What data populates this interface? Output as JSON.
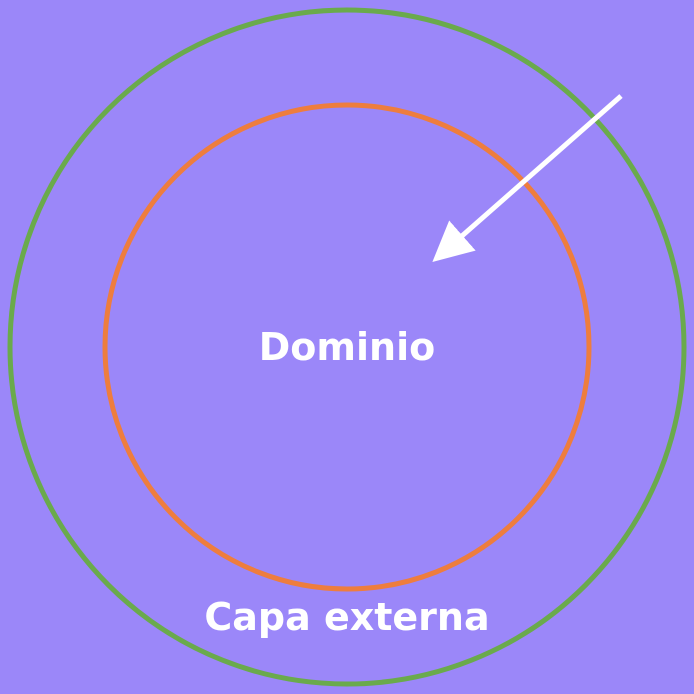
{
  "diagram": {
    "inner_label": "Dominio",
    "outer_label": "Capa externa"
  },
  "colors": {
    "background": "#9b87f9",
    "outer_ring": "#6aaa4c",
    "inner_ring": "#ee7d3e",
    "arrow": "#ffffff",
    "text": "#ffffff"
  }
}
